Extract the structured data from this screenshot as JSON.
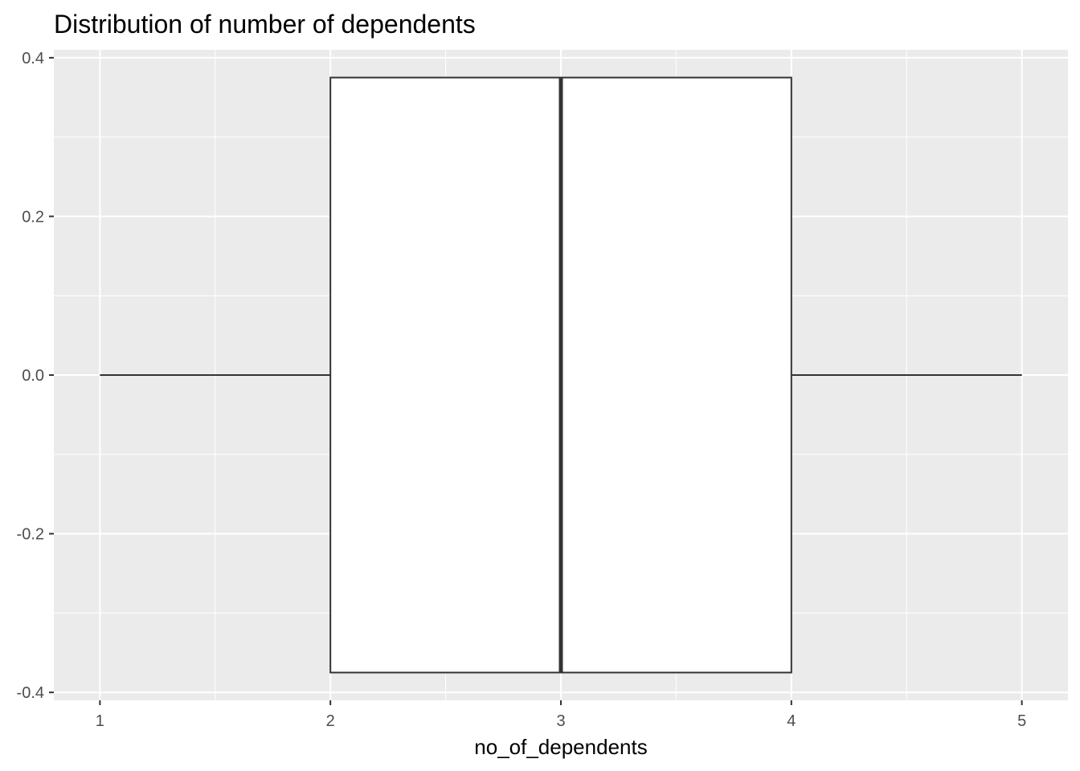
{
  "chart_data": {
    "type": "boxplot",
    "title": "Distribution of number of dependents",
    "xlabel": "no_of_dependents",
    "ylabel": "",
    "xlim": [
      0.8,
      5.2
    ],
    "ylim": [
      -0.41,
      0.41
    ],
    "x_ticks": [
      1,
      2,
      3,
      4,
      5
    ],
    "x_tick_labels": [
      "1",
      "2",
      "3",
      "4",
      "5"
    ],
    "y_ticks": [
      -0.4,
      -0.2,
      0.0,
      0.2,
      0.4
    ],
    "y_tick_labels": [
      "-0.4",
      "-0.2",
      "0.0",
      "0.2",
      "0.4"
    ],
    "grid": true,
    "orientation": "horizontal",
    "box": {
      "min": 1,
      "q1": 2,
      "median": 3,
      "q3": 4,
      "max": 5,
      "half_width": 0.375
    },
    "colors": {
      "panel_background": "#EBEBEB",
      "grid_line": "#FFFFFF",
      "box_fill": "#FFFFFF",
      "box_outline": "#333333",
      "tick_text": "#4D4D4D",
      "title_text": "#000000"
    }
  }
}
